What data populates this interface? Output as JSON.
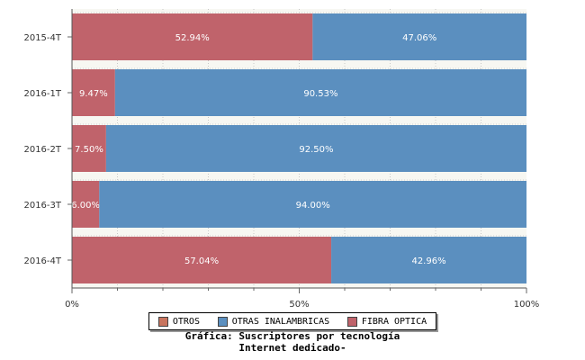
{
  "chart_data": {
    "type": "bar",
    "orientation": "horizontal",
    "stacked": true,
    "percent": true,
    "categories": [
      "2015-4T",
      "2016-1T",
      "2016-2T",
      "2016-3T",
      "2016-4T"
    ],
    "series": [
      {
        "name": "OTROS",
        "color": "#c8745e",
        "values": [
          0,
          0,
          0,
          0,
          0
        ]
      },
      {
        "name": "FIBRA OPTICA",
        "color": "#c0636b",
        "values": [
          52.94,
          9.47,
          7.5,
          6.0,
          57.04
        ],
        "labels": [
          "52.94%",
          "9.47%",
          "7.50%",
          "6.00%",
          "57.04%"
        ]
      },
      {
        "name": "OTRAS INALAMBRICAS",
        "color": "#5b8fbf",
        "values": [
          47.06,
          90.53,
          92.5,
          94.0,
          42.96
        ],
        "labels": [
          "47.06%",
          "90.53%",
          "92.50%",
          "94.00%",
          "42.96%"
        ]
      }
    ],
    "xlim": [
      0,
      100
    ],
    "x_ticks": [
      "0%",
      "50%",
      "100%"
    ],
    "grid": true,
    "legend_position": "bottom"
  },
  "legend": {
    "items": [
      {
        "label": "OTROS",
        "color": "#c8745e"
      },
      {
        "label": "OTRAS INALAMBRICAS",
        "color": "#5b8fbf"
      },
      {
        "label": "FIBRA OPTICA",
        "color": "#c0636b"
      }
    ]
  },
  "caption": {
    "line1": "Gráfica: Suscriptores por tecnología",
    "line2": "Internet dedicado-"
  }
}
